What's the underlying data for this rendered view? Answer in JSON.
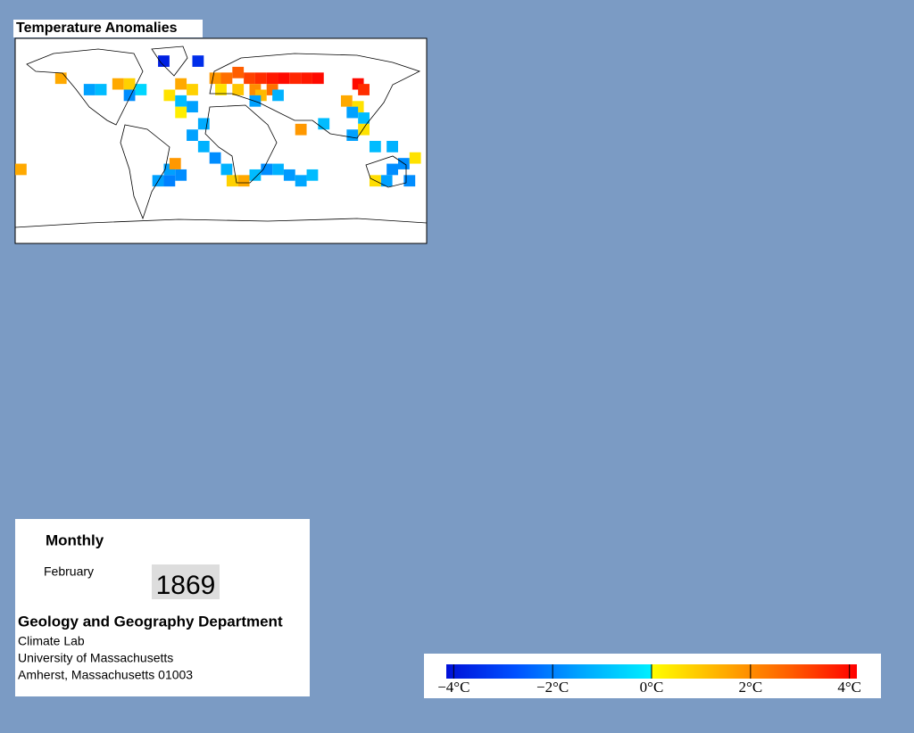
{
  "title": "Temperature Anomalies",
  "anomaly_cells": [
    {
      "lon": -140,
      "lat": 55,
      "value": 1.5
    },
    {
      "lon": -115,
      "lat": 45,
      "value": -1.5
    },
    {
      "lon": -105,
      "lat": 45,
      "value": -1
    },
    {
      "lon": -90,
      "lat": 50,
      "value": 1.5
    },
    {
      "lon": -80,
      "lat": 50,
      "value": 0.8
    },
    {
      "lon": -70,
      "lat": 45,
      "value": -0.5
    },
    {
      "lon": -80,
      "lat": 40,
      "value": -1.8
    },
    {
      "lon": -50,
      "lat": 70,
      "value": -3.8
    },
    {
      "lon": -20,
      "lat": 70,
      "value": -3.5
    },
    {
      "lon": -35,
      "lat": 50,
      "value": 1.5
    },
    {
      "lon": -25,
      "lat": 45,
      "value": 0.8
    },
    {
      "lon": -45,
      "lat": 40,
      "value": 0.5
    },
    {
      "lon": -35,
      "lat": 35,
      "value": -1
    },
    {
      "lon": -25,
      "lat": 30,
      "value": -1.5
    },
    {
      "lon": -35,
      "lat": 25,
      "value": 0.3
    },
    {
      "lon": -15,
      "lat": 15,
      "value": -1.3
    },
    {
      "lon": -25,
      "lat": 5,
      "value": -1.5
    },
    {
      "lon": -15,
      "lat": -5,
      "value": -1.2
    },
    {
      "lon": -5,
      "lat": -15,
      "value": -1.8
    },
    {
      "lon": 5,
      "lat": -25,
      "value": -1.2
    },
    {
      "lon": 10,
      "lat": -35,
      "value": 0.8
    },
    {
      "lon": 20,
      "lat": -35,
      "value": 1.5
    },
    {
      "lon": 30,
      "lat": -30,
      "value": -1
    },
    {
      "lon": 40,
      "lat": -25,
      "value": -1.8
    },
    {
      "lon": 50,
      "lat": -25,
      "value": -1.2
    },
    {
      "lon": 60,
      "lat": -30,
      "value": -1.6
    },
    {
      "lon": 70,
      "lat": -35,
      "value": -1.4
    },
    {
      "lon": 80,
      "lat": -30,
      "value": -1
    },
    {
      "lon": -45,
      "lat": -25,
      "value": -1.5
    },
    {
      "lon": -35,
      "lat": -30,
      "value": -1.8
    },
    {
      "lon": -55,
      "lat": -35,
      "value": -1.5
    },
    {
      "lon": -45,
      "lat": -35,
      "value": -2
    },
    {
      "lon": -40,
      "lat": -20,
      "value": 1.8
    },
    {
      "lon": -5,
      "lat": 55,
      "value": 1.8
    },
    {
      "lon": 5,
      "lat": 55,
      "value": 2.5
    },
    {
      "lon": 15,
      "lat": 60,
      "value": 2.8
    },
    {
      "lon": 25,
      "lat": 55,
      "value": 3.2
    },
    {
      "lon": 35,
      "lat": 55,
      "value": 3.5
    },
    {
      "lon": 45,
      "lat": 55,
      "value": 3.8
    },
    {
      "lon": 55,
      "lat": 55,
      "value": 4
    },
    {
      "lon": 65,
      "lat": 55,
      "value": 3.6
    },
    {
      "lon": 75,
      "lat": 55,
      "value": 3.8
    },
    {
      "lon": 85,
      "lat": 55,
      "value": 4
    },
    {
      "lon": 45,
      "lat": 45,
      "value": 2.5
    },
    {
      "lon": 30,
      "lat": 45,
      "value": 2
    },
    {
      "lon": 15,
      "lat": 45,
      "value": 1
    },
    {
      "lon": 0,
      "lat": 45,
      "value": 0.5
    },
    {
      "lon": 35,
      "lat": 40,
      "value": 1.2
    },
    {
      "lon": 30,
      "lat": 35,
      "value": -1.5
    },
    {
      "lon": 50,
      "lat": 40,
      "value": -1.2
    },
    {
      "lon": 120,
      "lat": 50,
      "value": 4
    },
    {
      "lon": 125,
      "lat": 45,
      "value": 3.5
    },
    {
      "lon": 110,
      "lat": 35,
      "value": 1.5
    },
    {
      "lon": 120,
      "lat": 30,
      "value": 0.5
    },
    {
      "lon": 115,
      "lat": 25,
      "value": -1.5
    },
    {
      "lon": 125,
      "lat": 20,
      "value": -1
    },
    {
      "lon": 125,
      "lat": 10,
      "value": 0.5
    },
    {
      "lon": 115,
      "lat": 5,
      "value": -1.5
    },
    {
      "lon": 135,
      "lat": -5,
      "value": -1
    },
    {
      "lon": 150,
      "lat": -5,
      "value": -1.2
    },
    {
      "lon": 160,
      "lat": -20,
      "value": -1.8
    },
    {
      "lon": 150,
      "lat": -25,
      "value": -1.8
    },
    {
      "lon": 145,
      "lat": -35,
      "value": -1.5
    },
    {
      "lon": 165,
      "lat": -35,
      "value": -1.8
    },
    {
      "lon": 135,
      "lat": -35,
      "value": 0.6
    },
    {
      "lon": 70,
      "lat": 10,
      "value": 1.8
    },
    {
      "lon": 90,
      "lat": 15,
      "value": -1
    },
    {
      "lon": -175,
      "lat": -25,
      "value": 1.5
    },
    {
      "lon": 170,
      "lat": -15,
      "value": 0.5
    }
  ],
  "colorbar": {
    "lim": [
      -4.15,
      4.15
    ],
    "ticks": [
      {
        "value": -4,
        "label": "−4°C"
      },
      {
        "value": -2,
        "label": "−2°C"
      },
      {
        "value": 0,
        "label": "0°C"
      },
      {
        "value": 2,
        "label": "2°C"
      },
      {
        "value": 4,
        "label": "4°C"
      }
    ],
    "colors_below": [
      "#0010d8",
      "#0050ff",
      "#00a8ff",
      "#00f0ff"
    ],
    "colors_above": [
      "#ffff00",
      "#ffb000",
      "#ff6000",
      "#ff0000"
    ]
  },
  "info": {
    "period": "Monthly",
    "month": "February",
    "year": "1869",
    "department": "Geology and Geography Department",
    "lines": [
      "Climate Lab",
      "University of Massachusetts",
      "Amherst, Massachusetts 01003"
    ]
  }
}
